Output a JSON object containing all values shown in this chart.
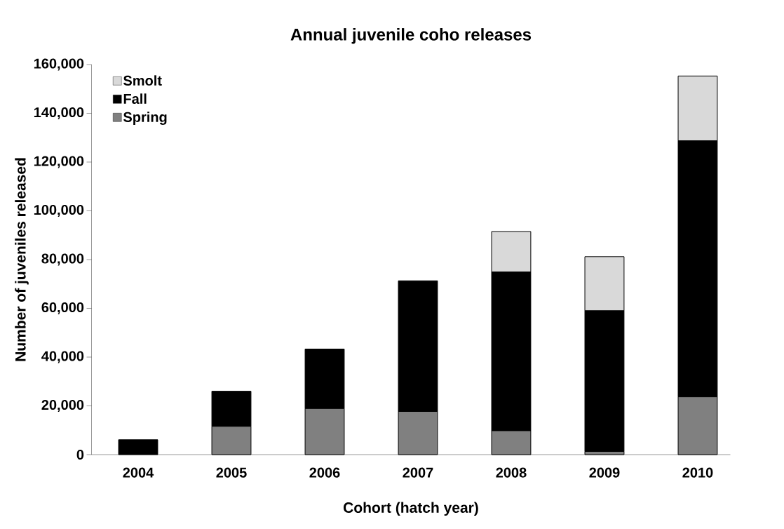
{
  "chart_data": {
    "type": "bar",
    "title": "Annual juvenile coho releases",
    "xlabel": "Cohort (hatch year)",
    "ylabel": "Number of juveniles released",
    "categories": [
      "2004",
      "2005",
      "2006",
      "2007",
      "2008",
      "2009",
      "2010"
    ],
    "stacked": true,
    "series": [
      {
        "name": "Spring",
        "color": "#808080",
        "values": [
          0,
          11600,
          18900,
          17700,
          9800,
          1300,
          23700
        ]
      },
      {
        "name": "Fall",
        "color": "#000000",
        "values": [
          6100,
          14400,
          24400,
          53600,
          65100,
          57700,
          105000
        ]
      },
      {
        "name": "Smolt",
        "color": "#d9d9d9",
        "values": [
          0,
          0,
          0,
          0,
          16600,
          22200,
          26600
        ]
      }
    ],
    "ylim": [
      0,
      160000
    ],
    "yticks": [
      0,
      {
        "value": 20000,
        "label": "20,000"
      },
      {
        "value": 40000,
        "label": "40,000"
      },
      {
        "value": 60000,
        "label": "60,000"
      },
      {
        "value": 80000,
        "label": "80,000"
      },
      {
        "value": 100000,
        "label": "100,000"
      },
      {
        "value": 120000,
        "label": "120,000"
      },
      {
        "value": 140000,
        "label": "140,000"
      },
      {
        "value": 160000,
        "label": "160,000"
      }
    ],
    "grid": false,
    "legend": "top left"
  }
}
